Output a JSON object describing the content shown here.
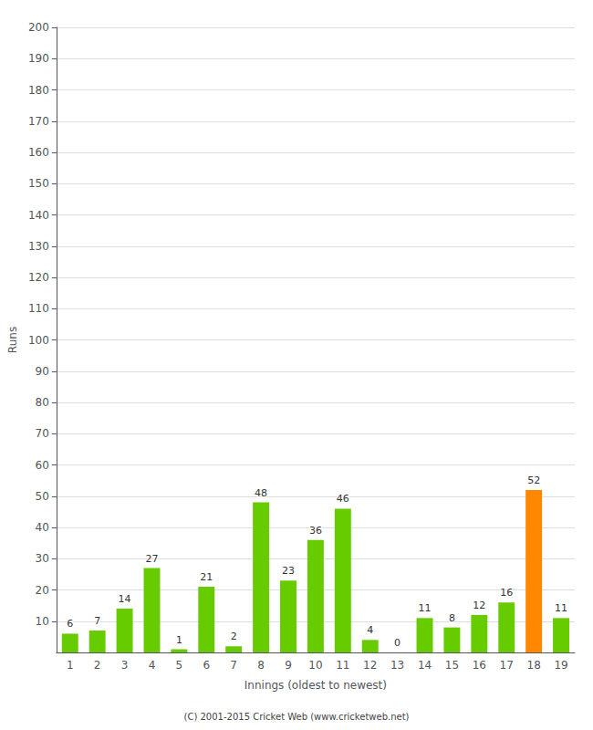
{
  "chart_data": {
    "type": "bar",
    "categories": [
      "1",
      "2",
      "3",
      "4",
      "5",
      "6",
      "7",
      "8",
      "9",
      "10",
      "11",
      "12",
      "13",
      "14",
      "15",
      "16",
      "17",
      "18",
      "19"
    ],
    "values": [
      6,
      7,
      14,
      27,
      1,
      21,
      2,
      48,
      23,
      36,
      46,
      4,
      0,
      11,
      8,
      12,
      16,
      52,
      11
    ],
    "colors": [
      "#66cc00",
      "#66cc00",
      "#66cc00",
      "#66cc00",
      "#66cc00",
      "#66cc00",
      "#66cc00",
      "#66cc00",
      "#66cc00",
      "#66cc00",
      "#66cc00",
      "#66cc00",
      "#66cc00",
      "#66cc00",
      "#66cc00",
      "#66cc00",
      "#66cc00",
      "#ff8800",
      "#66cc00"
    ],
    "xlabel": "Innings (oldest to newest)",
    "ylabel": "Runs",
    "ylim": [
      0,
      200
    ],
    "yticks": [
      10,
      20,
      30,
      40,
      50,
      60,
      70,
      80,
      90,
      100,
      110,
      120,
      130,
      140,
      150,
      160,
      170,
      180,
      190,
      200
    ],
    "grid": true,
    "data_labels": true,
    "annotation": "(C) 2001-2015 Cricket Web (www.cricketweb.net)"
  }
}
